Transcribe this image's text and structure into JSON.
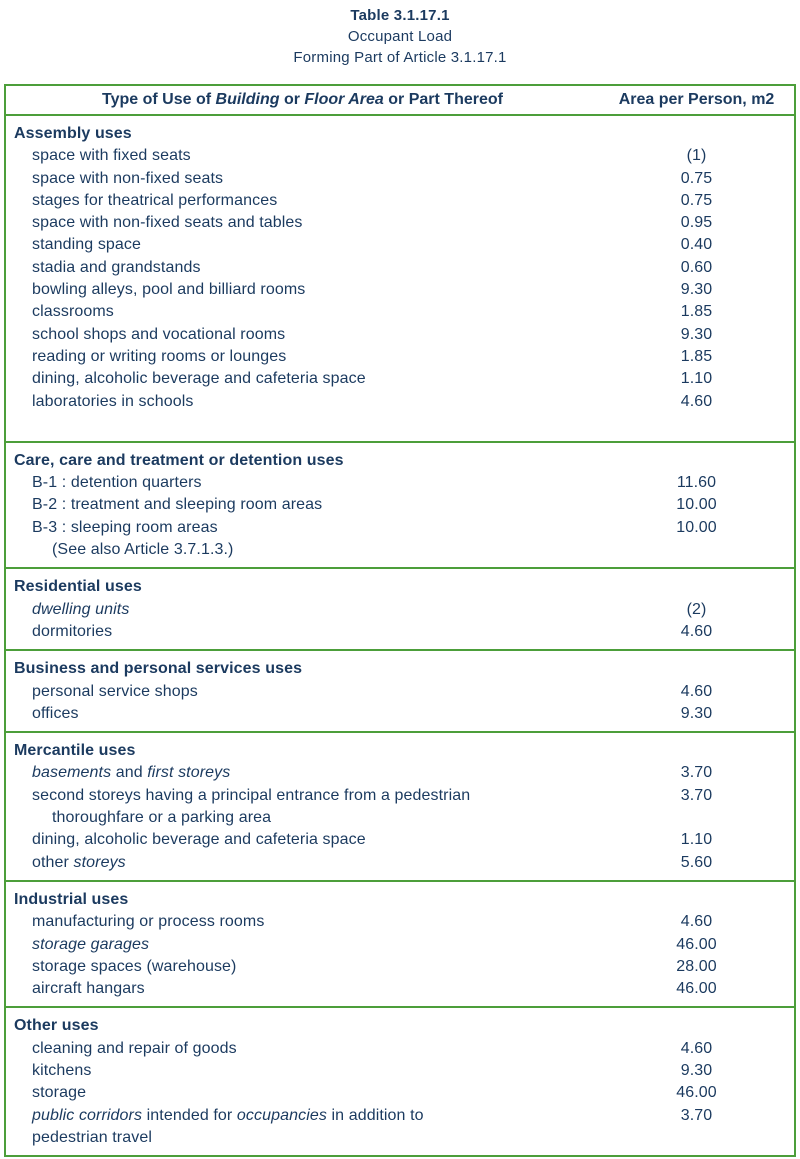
{
  "page_title": {
    "table_number": "Table 3.1.17.1",
    "subtitle": "Occupant Load",
    "forming": "Forming Part of Article 3.1.17.1"
  },
  "colors": {
    "text_navy": "#1b3a5f",
    "border_green": "#4c9e3a",
    "background": "#ffffff"
  },
  "table": {
    "header": {
      "col1_segments": [
        {
          "t": "Type of Use of "
        },
        {
          "t": "Building",
          "i": true
        },
        {
          "t": " or "
        },
        {
          "t": "Floor Area",
          "i": true
        },
        {
          "t": " or Part Thereof"
        }
      ],
      "col2": "Area per Person, m2"
    },
    "sections": [
      {
        "heading": "Assembly uses",
        "tall_bottom": true,
        "rows": [
          {
            "label": [
              {
                "t": "space with fixed seats"
              }
            ],
            "value": "(1)"
          },
          {
            "label": [
              {
                "t": "space with non-fixed seats"
              }
            ],
            "value": "0.75"
          },
          {
            "label": [
              {
                "t": "stages for theatrical performances"
              }
            ],
            "value": "0.75"
          },
          {
            "label": [
              {
                "t": "space with non-fixed seats and tables"
              }
            ],
            "value": "0.95"
          },
          {
            "label": [
              {
                "t": "standing space"
              }
            ],
            "value": "0.40"
          },
          {
            "label": [
              {
                "t": "stadia and grandstands"
              }
            ],
            "value": "0.60"
          },
          {
            "label": [
              {
                "t": "bowling alleys, pool and billiard rooms"
              }
            ],
            "value": "9.30"
          },
          {
            "label": [
              {
                "t": "classrooms"
              }
            ],
            "value": "1.85"
          },
          {
            "label": [
              {
                "t": "school shops and vocational rooms"
              }
            ],
            "value": "9.30"
          },
          {
            "label": [
              {
                "t": "reading or writing rooms or lounges"
              }
            ],
            "value": "1.85"
          },
          {
            "label": [
              {
                "t": "dining, alcoholic beverage and cafeteria space"
              }
            ],
            "value": "1.10"
          },
          {
            "label": [
              {
                "t": "laboratories in schools"
              }
            ],
            "value": "4.60"
          }
        ]
      },
      {
        "heading": "Care, care and treatment or detention uses",
        "rows": [
          {
            "label": [
              {
                "t": "B-1 : detention quarters"
              }
            ],
            "value": "11.60"
          },
          {
            "label": [
              {
                "t": "B-2 : treatment and sleeping room areas"
              }
            ],
            "value": "10.00"
          },
          {
            "label": [
              {
                "t": "B-3 : sleeping room areas"
              }
            ],
            "value": "10.00"
          },
          {
            "label": [
              {
                "t": "(See also Article 3.7.1.3.)"
              }
            ],
            "value": "",
            "extra_indent": true
          }
        ]
      },
      {
        "heading": "Residential uses",
        "rows": [
          {
            "label": [
              {
                "t": "dwelling units",
                "i": true
              }
            ],
            "value": "(2)"
          },
          {
            "label": [
              {
                "t": "dormitories"
              }
            ],
            "value": "4.60"
          }
        ]
      },
      {
        "heading": "Business and personal services uses",
        "rows": [
          {
            "label": [
              {
                "t": "personal service shops"
              }
            ],
            "value": "4.60"
          },
          {
            "label": [
              {
                "t": "offices"
              }
            ],
            "value": "9.30"
          }
        ]
      },
      {
        "heading": "Mercantile uses",
        "rows": [
          {
            "label": [
              {
                "t": "basements",
                "i": true
              },
              {
                "t": " and "
              },
              {
                "t": "first storeys",
                "i": true
              }
            ],
            "value": "3.70"
          },
          {
            "label": [
              {
                "t": "second storeys having a principal entrance from a pedestrian"
              }
            ],
            "label2": [
              {
                "t": "thoroughfare or a parking area"
              }
            ],
            "indent2": true,
            "value": "3.70"
          },
          {
            "label": [
              {
                "t": "dining, alcoholic beverage and cafeteria space"
              }
            ],
            "value": "1.10"
          },
          {
            "label": [
              {
                "t": "other "
              },
              {
                "t": "storeys",
                "i": true
              }
            ],
            "value": "5.60"
          }
        ]
      },
      {
        "heading": "Industrial uses",
        "rows": [
          {
            "label": [
              {
                "t": "manufacturing or process rooms"
              }
            ],
            "value": "4.60"
          },
          {
            "label": [
              {
                "t": "storage garages",
                "i": true
              }
            ],
            "value": "46.00"
          },
          {
            "label": [
              {
                "t": "storage spaces (warehouse)"
              }
            ],
            "value": "28.00"
          },
          {
            "label": [
              {
                "t": "aircraft hangars"
              }
            ],
            "value": "46.00"
          }
        ]
      },
      {
        "heading": "Other uses",
        "rows": [
          {
            "label": [
              {
                "t": "cleaning and repair of goods"
              }
            ],
            "value": "4.60"
          },
          {
            "label": [
              {
                "t": "kitchens"
              }
            ],
            "value": "9.30"
          },
          {
            "label": [
              {
                "t": "storage"
              }
            ],
            "value": "46.00"
          },
          {
            "label": [
              {
                "t": "public corridors",
                "i": true
              },
              {
                "t": " intended for "
              },
              {
                "t": "occupancies",
                "i": true
              },
              {
                "t": " in addition to"
              }
            ],
            "label2": [
              {
                "t": "pedestrian travel"
              }
            ],
            "indent2": false,
            "value": "3.70"
          }
        ]
      }
    ]
  }
}
